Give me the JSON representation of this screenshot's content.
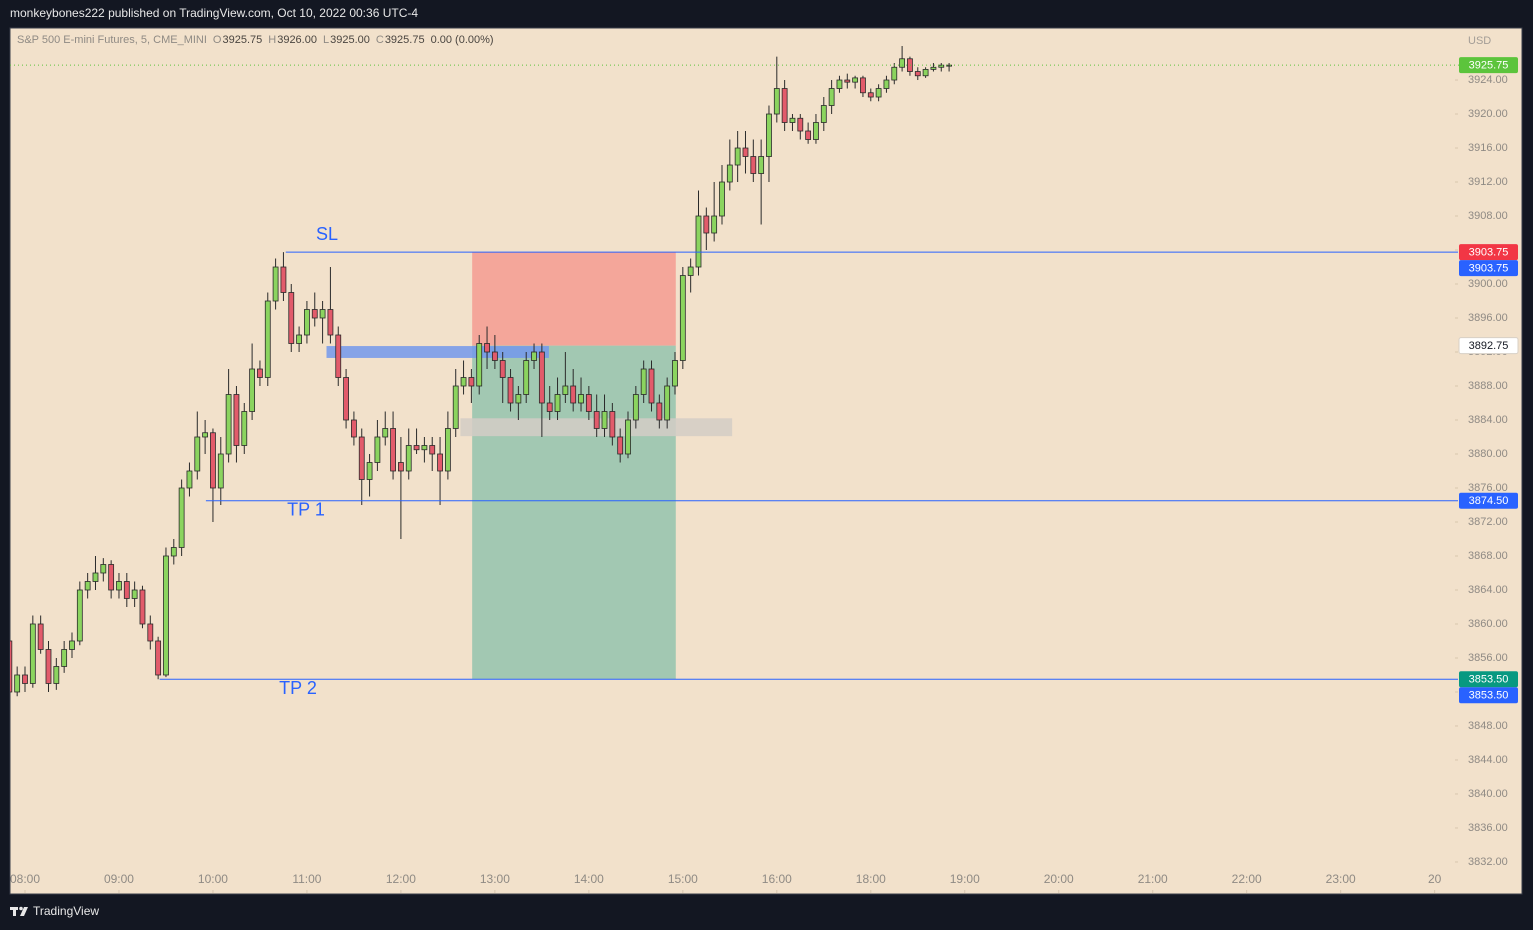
{
  "page": {
    "publisher": "monkeybones222 published on TradingView.com, Oct 10, 2022 00:36 UTC-4",
    "symbol": "S&P 500 E-mini Futures, 5, CME_MINI",
    "legend": [
      {
        "key": "O",
        "value": "3925.75"
      },
      {
        "key": "H",
        "value": "3926.00"
      },
      {
        "key": "L",
        "value": "3925.00"
      },
      {
        "key": "C",
        "value": "3925.75"
      }
    ],
    "change": "0.00 (0.00%)",
    "footer": "TradingView"
  },
  "chart_data": {
    "type": "candlestick",
    "currency": "USD",
    "up_color": "#8bd45f",
    "down_color": "#e25b6b",
    "grid": false,
    "x": [
      0,
      1,
      2,
      3,
      4,
      5,
      6,
      7,
      8,
      9,
      10,
      11,
      12,
      13,
      14,
      15,
      16,
      17,
      18,
      19,
      20,
      21,
      22,
      23,
      24,
      25,
      26,
      27,
      28,
      29,
      30,
      31,
      32,
      33,
      34,
      35,
      36,
      37,
      38,
      39,
      40,
      41,
      42,
      43,
      44,
      45,
      46,
      47,
      48,
      49,
      50,
      51,
      52,
      53,
      54,
      55,
      56,
      57,
      58,
      59,
      60,
      61,
      62,
      63,
      64,
      65,
      66,
      67,
      68,
      69,
      70,
      71,
      72,
      73,
      74,
      75,
      76,
      77,
      78,
      79,
      80,
      81,
      82,
      83,
      84,
      85,
      86,
      87,
      88,
      89,
      90,
      91,
      92,
      93,
      94,
      95,
      96,
      97,
      98,
      99,
      100,
      101,
      102,
      103,
      104,
      105,
      106,
      107,
      108,
      109,
      110,
      111,
      112,
      113,
      114,
      115,
      116,
      117,
      118,
      119,
      120
    ],
    "ohlc": [
      [
        3858,
        3858.75,
        3851.25,
        3852
      ],
      [
        3852,
        3855,
        3851.5,
        3854
      ],
      [
        3854,
        3855,
        3852,
        3853
      ],
      [
        3853,
        3861,
        3852.5,
        3860
      ],
      [
        3860,
        3861,
        3856.5,
        3857
      ],
      [
        3857,
        3858,
        3852,
        3853
      ],
      [
        3853,
        3856,
        3852.25,
        3855
      ],
      [
        3855,
        3858,
        3854.25,
        3857
      ],
      [
        3857,
        3859,
        3856,
        3858
      ],
      [
        3858,
        3865,
        3857.5,
        3864
      ],
      [
        3864,
        3866,
        3863,
        3865
      ],
      [
        3865,
        3868,
        3864,
        3866
      ],
      [
        3866,
        3867.75,
        3865,
        3867
      ],
      [
        3867,
        3867.5,
        3863,
        3864
      ],
      [
        3864,
        3866,
        3863,
        3865
      ],
      [
        3865,
        3866,
        3862,
        3863
      ],
      [
        3863,
        3865,
        3862,
        3864
      ],
      [
        3864,
        3864.5,
        3859.5,
        3860
      ],
      [
        3860,
        3861,
        3857,
        3858
      ],
      [
        3858,
        3858.5,
        3853.5,
        3854
      ],
      [
        3854,
        3869,
        3853.75,
        3868
      ],
      [
        3868,
        3870,
        3867,
        3869
      ],
      [
        3869,
        3877,
        3868,
        3876
      ],
      [
        3876,
        3879,
        3875,
        3878
      ],
      [
        3878,
        3885,
        3877,
        3882
      ],
      [
        3882,
        3884,
        3880,
        3882.5
      ],
      [
        3882.5,
        3883,
        3872,
        3876
      ],
      [
        3876,
        3882,
        3874,
        3880
      ],
      [
        3880,
        3890,
        3879,
        3887
      ],
      [
        3887,
        3888,
        3879,
        3881
      ],
      [
        3881,
        3886,
        3880,
        3885
      ],
      [
        3885,
        3893,
        3884,
        3890
      ],
      [
        3890,
        3891,
        3888,
        3889
      ],
      [
        3889,
        3899,
        3888,
        3898
      ],
      [
        3898,
        3903,
        3897,
        3902
      ],
      [
        3902,
        3903.75,
        3898,
        3899
      ],
      [
        3899,
        3900,
        3892,
        3893
      ],
      [
        3893,
        3895,
        3892,
        3894
      ],
      [
        3894,
        3898,
        3893,
        3897
      ],
      [
        3897,
        3899,
        3895,
        3896
      ],
      [
        3896,
        3898,
        3893,
        3897
      ],
      [
        3897,
        3902,
        3893,
        3894
      ],
      [
        3894,
        3895,
        3888,
        3889
      ],
      [
        3889,
        3890,
        3883,
        3884
      ],
      [
        3884,
        3885,
        3881,
        3882
      ],
      [
        3882,
        3883,
        3874,
        3877
      ],
      [
        3877,
        3880,
        3875,
        3879
      ],
      [
        3879,
        3884,
        3878,
        3882
      ],
      [
        3882,
        3885,
        3881,
        3883
      ],
      [
        3883,
        3885,
        3877,
        3878
      ],
      [
        3879,
        3882,
        3870,
        3878
      ],
      [
        3878,
        3883,
        3877,
        3881
      ],
      [
        3881,
        3883,
        3880,
        3880.5
      ],
      [
        3880.5,
        3882,
        3879,
        3881
      ],
      [
        3881,
        3882,
        3878,
        3880
      ],
      [
        3880,
        3882,
        3874,
        3878
      ],
      [
        3878,
        3885,
        3877,
        3883
      ],
      [
        3883,
        3890,
        3882,
        3888
      ],
      [
        3888,
        3891,
        3887,
        3889
      ],
      [
        3889,
        3890,
        3886,
        3888
      ],
      [
        3888,
        3894,
        3887,
        3893
      ],
      [
        3893,
        3895,
        3890,
        3892
      ],
      [
        3892,
        3894,
        3890,
        3891
      ],
      [
        3891,
        3892,
        3886,
        3889
      ],
      [
        3889,
        3890,
        3885,
        3886
      ],
      [
        3886,
        3888,
        3884,
        3887
      ],
      [
        3887,
        3892,
        3886,
        3891
      ],
      [
        3891,
        3893,
        3890,
        3892
      ],
      [
        3892,
        3893,
        3882,
        3886
      ],
      [
        3886,
        3888,
        3884,
        3885
      ],
      [
        3885,
        3889,
        3884,
        3887
      ],
      [
        3887,
        3892,
        3886,
        3888
      ],
      [
        3888,
        3890,
        3885,
        3886
      ],
      [
        3886,
        3889,
        3885,
        3887
      ],
      [
        3887,
        3888,
        3884,
        3885
      ],
      [
        3885,
        3887,
        3882,
        3883
      ],
      [
        3883,
        3887,
        3882,
        3885
      ],
      [
        3885,
        3886,
        3881,
        3882
      ],
      [
        3882,
        3883,
        3879,
        3880
      ],
      [
        3880,
        3885,
        3879.5,
        3884
      ],
      [
        3884,
        3888,
        3883,
        3887
      ],
      [
        3887,
        3891,
        3886,
        3890
      ],
      [
        3890,
        3891,
        3885,
        3886
      ],
      [
        3886,
        3887,
        3883,
        3884
      ],
      [
        3884,
        3889,
        3883,
        3888
      ],
      [
        3888,
        3892,
        3887,
        3891
      ],
      [
        3891,
        3902,
        3890,
        3901
      ],
      [
        3901,
        3903,
        3899,
        3902
      ],
      [
        3902,
        3911,
        3901,
        3908
      ],
      [
        3908,
        3909,
        3904,
        3906
      ],
      [
        3906,
        3912,
        3905,
        3908
      ],
      [
        3908,
        3914,
        3907,
        3912
      ],
      [
        3912,
        3917,
        3911,
        3914
      ],
      [
        3914,
        3918,
        3912,
        3916
      ],
      [
        3916,
        3918,
        3913,
        3915
      ],
      [
        3915,
        3917,
        3912,
        3913
      ],
      [
        3913,
        3917,
        3907,
        3915
      ],
      [
        3915,
        3921,
        3912,
        3920
      ],
      [
        3920,
        3926.75,
        3919,
        3923
      ],
      [
        3923,
        3924,
        3918,
        3919
      ],
      [
        3919,
        3920,
        3918,
        3919.5
      ],
      [
        3919.5,
        3920,
        3917,
        3918
      ],
      [
        3918,
        3919,
        3916.5,
        3917
      ],
      [
        3917,
        3920,
        3916.5,
        3919
      ],
      [
        3919,
        3922,
        3918,
        3921
      ],
      [
        3921,
        3924,
        3920,
        3923
      ],
      [
        3923,
        3924.5,
        3922.5,
        3924
      ],
      [
        3924,
        3924.75,
        3923,
        3923.75
      ],
      [
        3923.75,
        3924.5,
        3923,
        3924.25
      ],
      [
        3924.25,
        3924.5,
        3922,
        3922.5
      ],
      [
        3922.5,
        3923,
        3921.5,
        3922
      ],
      [
        3922,
        3923.5,
        3921.5,
        3923
      ],
      [
        3923,
        3924.5,
        3922.5,
        3924
      ],
      [
        3924,
        3926,
        3923.5,
        3925.5
      ],
      [
        3925.5,
        3928,
        3925,
        3926.5
      ],
      [
        3926.5,
        3926.75,
        3924.5,
        3925
      ],
      [
        3925,
        3925.5,
        3924,
        3924.5
      ],
      [
        3924.5,
        3925.5,
        3924.25,
        3925.25
      ],
      [
        3925.25,
        3926,
        3925,
        3925.5
      ],
      [
        3925.5,
        3926,
        3925,
        3925.75
      ],
      [
        3925.75,
        3926,
        3925,
        3925.75
      ]
    ],
    "xlim": [
      0.085,
      184.6
    ],
    "xticks": [
      {
        "value": 2,
        "label": "08:00"
      },
      {
        "value": 14,
        "label": "09:00"
      },
      {
        "value": 26,
        "label": "10:00"
      },
      {
        "value": 38,
        "label": "11:00"
      },
      {
        "value": 50,
        "label": "12:00"
      },
      {
        "value": 62,
        "label": "13:00"
      },
      {
        "value": 74,
        "label": "14:00"
      },
      {
        "value": 86,
        "label": "15:00"
      },
      {
        "value": 98,
        "label": "16:00"
      },
      {
        "value": 110,
        "label": "18:00"
      },
      {
        "value": 122,
        "label": "19:00"
      },
      {
        "value": 134,
        "label": "20:00"
      },
      {
        "value": 146,
        "label": "21:00"
      },
      {
        "value": 158,
        "label": "22:00"
      },
      {
        "value": 170,
        "label": "23:00"
      },
      {
        "value": 182,
        "label": "20"
      }
    ],
    "ylim": [
      3828.35,
      3930.12
    ],
    "yticks": [
      {
        "value": 3832,
        "label": "3832.00"
      },
      {
        "value": 3836,
        "label": "3836.00"
      },
      {
        "value": 3840,
        "label": "3840.00"
      },
      {
        "value": 3844,
        "label": "3844.00"
      },
      {
        "value": 3848,
        "label": "3848.00"
      },
      {
        "value": 3852,
        "label": "3852.00"
      },
      {
        "value": 3856,
        "label": "3856.00"
      },
      {
        "value": 3860,
        "label": "3860.00"
      },
      {
        "value": 3864,
        "label": "3864.00"
      },
      {
        "value": 3868,
        "label": "3868.00"
      },
      {
        "value": 3872,
        "label": "3872.00"
      },
      {
        "value": 3876,
        "label": "3876.00"
      },
      {
        "value": 3880,
        "label": "3880.00"
      },
      {
        "value": 3884,
        "label": "3884.00"
      },
      {
        "value": 3888,
        "label": "3888.00"
      },
      {
        "value": 3892,
        "label": "3892.00"
      },
      {
        "value": 3896,
        "label": "3896.00"
      },
      {
        "value": 3900,
        "label": "3900.00"
      },
      {
        "value": 3904,
        "label": "3904.00"
      },
      {
        "value": 3908,
        "label": "3908.00"
      },
      {
        "value": 3912,
        "label": "3912.00"
      },
      {
        "value": 3916,
        "label": "3916.00"
      },
      {
        "value": 3920,
        "label": "3920.00"
      },
      {
        "value": 3924,
        "label": "3924.00"
      }
    ],
    "position": {
      "stop": 3903.75,
      "entry": 3892.75,
      "target": 3853.5,
      "x_start": 59.1,
      "x_end": 85.1,
      "stop_color": "#f4a69a",
      "target_color": "#a2c8b2"
    },
    "zones": [
      {
        "x": [
          40.5,
          68.9
        ],
        "y": [
          3891.3,
          3892.7
        ],
        "color": "#7398ec"
      },
      {
        "x": [
          57.6,
          92.3
        ],
        "y": [
          3882.1,
          3884.2
        ],
        "color": "#d3cdc6"
      }
    ],
    "levels": [
      {
        "label": "SL",
        "value": 3903.75,
        "x_start": 35.3,
        "color": "#2962ff"
      },
      {
        "label": "TP 1",
        "value": 3874.5,
        "x_start": 25.1,
        "color": "#2962ff"
      },
      {
        "label": "TP 2",
        "value": 3853.5,
        "x_start": 19.2,
        "color": "#2962ff"
      }
    ],
    "price_tags": [
      {
        "value": 3925.75,
        "color": "#5cc43c",
        "price_line": true
      },
      {
        "value": 3903.75,
        "color": "#f23645"
      },
      {
        "value": 3903.75,
        "color": "#2962ff"
      },
      {
        "value": 3892.75,
        "color": "#ffffff"
      },
      {
        "value": 3874.5,
        "label": "3874.50",
        "color": "#2962ff"
      },
      {
        "value": 3853.5,
        "label": "3853.50",
        "color": "#089981"
      },
      {
        "value": 3853.5,
        "label": "3853.50",
        "color": "#2962ff"
      }
    ]
  }
}
